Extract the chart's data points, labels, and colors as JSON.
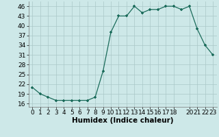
{
  "x": [
    0,
    1,
    2,
    3,
    4,
    5,
    6,
    7,
    8,
    9,
    10,
    11,
    12,
    13,
    14,
    15,
    16,
    17,
    18,
    19,
    20,
    21,
    22,
    23
  ],
  "y": [
    21,
    19,
    18,
    17,
    17,
    17,
    17,
    17,
    18,
    26,
    38,
    43,
    43,
    46,
    44,
    45,
    45,
    46,
    46,
    45,
    46,
    39,
    34,
    31
  ],
  "line_color": "#1a6b5a",
  "marker_color": "#1a6b5a",
  "bg_color": "#cde8e8",
  "grid_color": "#aac8c8",
  "xlabel": "Humidex (Indice chaleur)",
  "ylim": [
    15.0,
    47.5
  ],
  "xlim": [
    -0.5,
    23.5
  ],
  "yticks": [
    16,
    19,
    22,
    25,
    28,
    31,
    34,
    37,
    40,
    43,
    46
  ],
  "xticks": [
    0,
    1,
    2,
    3,
    4,
    5,
    6,
    7,
    8,
    9,
    10,
    11,
    12,
    13,
    14,
    15,
    16,
    17,
    18,
    20,
    21,
    22,
    23
  ],
  "xlabel_fontsize": 7.5,
  "tick_fontsize": 6.5
}
